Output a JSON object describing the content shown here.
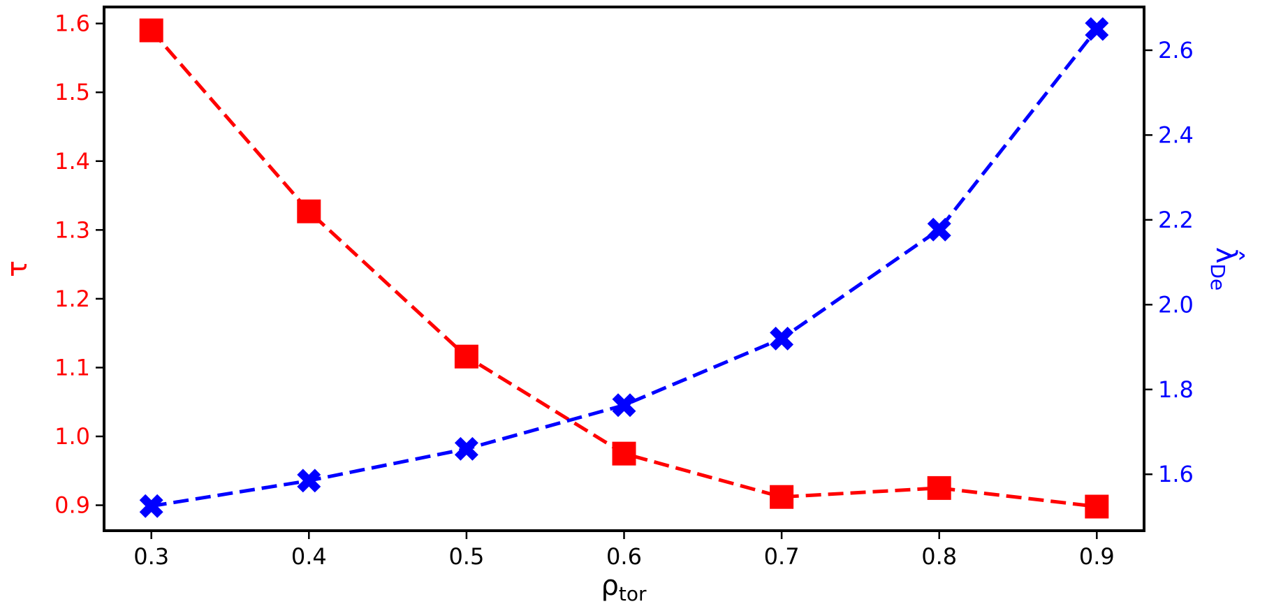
{
  "chart_data": {
    "type": "line",
    "x": [
      0.3,
      0.4,
      0.5,
      0.6,
      0.7,
      0.8,
      0.9
    ],
    "xlabel": {
      "main": "ρ",
      "sub": "tor"
    },
    "xlim": [
      0.27,
      0.93
    ],
    "xticks": [
      "0.3",
      "0.4",
      "0.5",
      "0.6",
      "0.7",
      "0.8",
      "0.9"
    ],
    "grid": false,
    "legend": "none",
    "left_axis": {
      "label": "τ",
      "color": "#ff0000",
      "ylim": [
        0.863,
        1.624
      ],
      "ticks": [
        "0.9",
        "1.0",
        "1.1",
        "1.2",
        "1.3",
        "1.4",
        "1.5",
        "1.6"
      ]
    },
    "right_axis": {
      "label": {
        "main": "λ̂",
        "sub": "De"
      },
      "color": "#0000ff",
      "ylim": [
        1.467,
        2.702
      ],
      "ticks": [
        "1.6",
        "1.8",
        "2.0",
        "2.2",
        "2.4",
        "2.6"
      ]
    },
    "series": [
      {
        "axis": "left",
        "color": "#ff0000",
        "marker": "square",
        "linestyle": "dashed",
        "values": [
          1.59,
          1.327,
          1.116,
          0.975,
          0.912,
          0.925,
          0.898
        ]
      },
      {
        "axis": "right",
        "color": "#0000ff",
        "marker": "x-filled",
        "linestyle": "dashed",
        "values": [
          1.525,
          1.585,
          1.66,
          1.763,
          1.92,
          2.177,
          2.65
        ]
      }
    ]
  }
}
